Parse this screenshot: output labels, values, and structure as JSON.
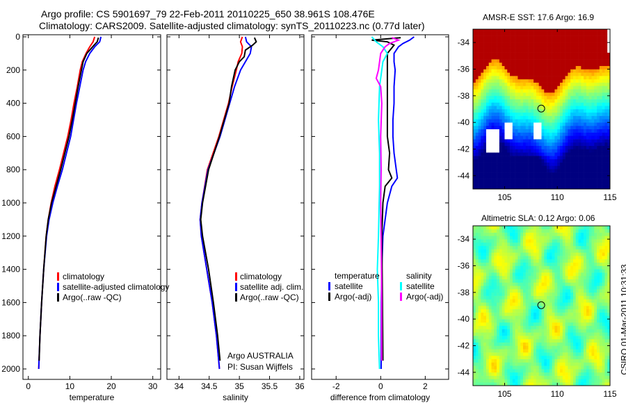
{
  "title": {
    "line1": "Argo profile: CS 5901697_79 22-Feb-2011 20110225_650 38.961S 108.476E",
    "line2": "Climatology: CARS2009. Satellite-adjusted climatology: synTS_20110223.nc (0.77d later)"
  },
  "credit": {
    "float_line1": "Argo AUSTRALIA",
    "float_line2": "PI: Susan Wijffels"
  },
  "timestamp": "CSIRO 01-Mar-2011 10:31:33",
  "colors": {
    "red": "#ff0000",
    "blue": "#0000ff",
    "black": "#000000",
    "cyan": "#00ffff",
    "magenta": "#ff00ff"
  },
  "chart_data": [
    {
      "type": "line",
      "xlabel": "temperature",
      "xlim": [
        -1.3,
        31.9
      ],
      "ylim": [
        2000,
        0
      ],
      "xticks": [
        0,
        10,
        20,
        30
      ],
      "xtick_labels": [
        "0",
        "10",
        "20",
        "30"
      ],
      "yticks": [
        0,
        200,
        400,
        600,
        800,
        1000,
        1200,
        1400,
        1600,
        1800,
        2000
      ],
      "ytick_labels": [
        "0",
        "200",
        "400",
        "600",
        "800",
        "1000",
        "1200",
        "1400",
        "1600",
        "1800",
        "2000"
      ],
      "legend": [
        "climatology",
        "satellite-adjusted climatology",
        "Argo(..raw -QC)"
      ],
      "series": [
        {
          "name": "climatology",
          "color": "#ff0000",
          "points": [
            [
              0,
              16.0
            ],
            [
              30,
              15.6
            ],
            [
              60,
              14.8
            ],
            [
              100,
              13.9
            ],
            [
              150,
              13.0
            ],
            [
              200,
              12.5
            ],
            [
              300,
              11.8
            ],
            [
              400,
              11.0
            ],
            [
              500,
              10.3
            ],
            [
              600,
              9.5
            ],
            [
              700,
              8.5
            ],
            [
              800,
              7.5
            ],
            [
              900,
              6.4
            ],
            [
              1000,
              5.5
            ],
            [
              1100,
              4.8
            ],
            [
              1200,
              4.3
            ],
            [
              1400,
              3.7
            ],
            [
              1600,
              3.2
            ],
            [
              1800,
              2.8
            ],
            [
              2000,
              2.5
            ]
          ]
        },
        {
          "name": "satellite-adjusted climatology",
          "color": "#0000ff",
          "points": [
            [
              0,
              17.5
            ],
            [
              30,
              17.2
            ],
            [
              60,
              16.0
            ],
            [
              100,
              14.8
            ],
            [
              150,
              13.8
            ],
            [
              200,
              13.2
            ],
            [
              300,
              12.4
            ],
            [
              400,
              11.6
            ],
            [
              500,
              10.9
            ],
            [
              600,
              10.2
            ],
            [
              700,
              9.2
            ],
            [
              800,
              8.2
            ],
            [
              900,
              7.0
            ],
            [
              1000,
              5.9
            ],
            [
              1100,
              5.0
            ],
            [
              1200,
              4.4
            ],
            [
              1400,
              3.7
            ],
            [
              1600,
              3.2
            ],
            [
              1800,
              2.8
            ],
            [
              2000,
              2.5
            ]
          ]
        },
        {
          "name": "Argo(..raw -QC)",
          "color": "#000000",
          "points": [
            [
              5,
              16.9
            ],
            [
              30,
              16.6
            ],
            [
              60,
              15.5
            ],
            [
              100,
              14.1
            ],
            [
              150,
              13.2
            ],
            [
              200,
              12.8
            ],
            [
              300,
              12.0
            ],
            [
              400,
              11.3
            ],
            [
              500,
              10.6
            ],
            [
              600,
              9.8
            ],
            [
              700,
              8.8
            ],
            [
              800,
              7.8
            ],
            [
              900,
              6.7
            ],
            [
              1000,
              5.6
            ],
            [
              1100,
              4.8
            ],
            [
              1200,
              4.3
            ],
            [
              1400,
              3.7
            ],
            [
              1600,
              3.2
            ],
            [
              1800,
              2.8
            ],
            [
              1950,
              2.6
            ]
          ]
        }
      ]
    },
    {
      "type": "line",
      "xlabel": "salinity",
      "xlim": [
        33.8,
        36.07
      ],
      "ylim": [
        2000,
        0
      ],
      "xticks": [
        34,
        34.5,
        35,
        35.5,
        36
      ],
      "xtick_labels": [
        "34",
        "34.5",
        "35",
        "35.5",
        "36"
      ],
      "yticks": [
        0,
        200,
        400,
        600,
        800,
        1000,
        1200,
        1400,
        1600,
        1800,
        2000
      ],
      "legend": [
        "climatology",
        "satellite adj. clim.",
        "Argo(..raw -QC)"
      ],
      "series": [
        {
          "name": "climatology",
          "color": "#ff0000",
          "points": [
            [
              0,
              35.05
            ],
            [
              30,
              35.02
            ],
            [
              60,
              35.05
            ],
            [
              100,
              35.04
            ],
            [
              150,
              34.98
            ],
            [
              200,
              34.95
            ],
            [
              300,
              34.88
            ],
            [
              400,
              34.82
            ],
            [
              600,
              34.66
            ],
            [
              800,
              34.47
            ],
            [
              1000,
              34.38
            ],
            [
              1100,
              34.35
            ],
            [
              1200,
              34.37
            ],
            [
              1400,
              34.46
            ],
            [
              1600,
              34.55
            ],
            [
              1800,
              34.62
            ],
            [
              2000,
              34.67
            ]
          ]
        },
        {
          "name": "satellite adj. clim.",
          "color": "#0000ff",
          "points": [
            [
              0,
              35.1
            ],
            [
              30,
              35.12
            ],
            [
              60,
              35.2
            ],
            [
              100,
              35.18
            ],
            [
              150,
              35.1
            ],
            [
              200,
              35.02
            ],
            [
              300,
              34.92
            ],
            [
              400,
              34.84
            ],
            [
              600,
              34.68
            ],
            [
              800,
              34.48
            ],
            [
              1000,
              34.38
            ],
            [
              1100,
              34.35
            ],
            [
              1200,
              34.37
            ],
            [
              1400,
              34.46
            ],
            [
              1600,
              34.55
            ],
            [
              1800,
              34.62
            ],
            [
              2000,
              34.67
            ]
          ]
        },
        {
          "name": "Argo(..raw -QC)",
          "color": "#000000",
          "points": [
            [
              5,
              35.25
            ],
            [
              30,
              35.28
            ],
            [
              50,
              35.22
            ],
            [
              80,
              35.1
            ],
            [
              120,
              35.08
            ],
            [
              150,
              35.0
            ],
            [
              200,
              34.93
            ],
            [
              300,
              34.87
            ],
            [
              400,
              34.83
            ],
            [
              600,
              34.67
            ],
            [
              800,
              34.49
            ],
            [
              1000,
              34.39
            ],
            [
              1100,
              34.36
            ],
            [
              1200,
              34.39
            ],
            [
              1400,
              34.49
            ],
            [
              1600,
              34.57
            ],
            [
              1800,
              34.64
            ],
            [
              1950,
              34.68
            ]
          ]
        }
      ]
    },
    {
      "type": "line",
      "xlabel": "difference from climatology",
      "xlim": [
        -3.1,
        3.05
      ],
      "ylim": [
        2000,
        0
      ],
      "xticks": [
        -2,
        0,
        2
      ],
      "xtick_labels": [
        "-2",
        "0",
        "2"
      ],
      "yticks": [
        0,
        200,
        400,
        600,
        800,
        1000,
        1200,
        1400,
        1600,
        1800,
        2000
      ],
      "legend_groups": [
        {
          "title": "temperature",
          "items": [
            "satellite",
            "Argo(-adj)"
          ]
        },
        {
          "title": "salinity",
          "items": [
            "satellite",
            "Argo(-adj)"
          ]
        }
      ],
      "series": [
        {
          "name": "temperature satellite",
          "color": "#0000ff",
          "points": [
            [
              0,
              1.5
            ],
            [
              20,
              1.3
            ],
            [
              40,
              1.0
            ],
            [
              60,
              0.8
            ],
            [
              100,
              0.6
            ],
            [
              150,
              0.6
            ],
            [
              200,
              0.65
            ],
            [
              300,
              0.6
            ],
            [
              400,
              0.6
            ],
            [
              500,
              0.55
            ],
            [
              600,
              0.55
            ],
            [
              700,
              0.6
            ],
            [
              800,
              0.7
            ],
            [
              850,
              0.75
            ],
            [
              900,
              0.5
            ],
            [
              1000,
              0.3
            ],
            [
              1200,
              0.1
            ],
            [
              1400,
              0.05
            ],
            [
              1600,
              0.03
            ],
            [
              2000,
              0.02
            ]
          ]
        },
        {
          "name": "temperature Argo(-adj)",
          "color": "#000000",
          "points": [
            [
              5,
              0.9
            ],
            [
              20,
              -0.4
            ],
            [
              30,
              0.3
            ],
            [
              50,
              0.6
            ],
            [
              100,
              0.3
            ],
            [
              150,
              0.3
            ],
            [
              200,
              0.3
            ],
            [
              400,
              0.3
            ],
            [
              600,
              0.3
            ],
            [
              700,
              0.4
            ],
            [
              800,
              0.35
            ],
            [
              850,
              0.5
            ],
            [
              900,
              0.2
            ],
            [
              1000,
              0.1
            ],
            [
              1200,
              0.05
            ],
            [
              1600,
              0.08
            ],
            [
              1950,
              0.1
            ]
          ]
        },
        {
          "name": "salinity satellite",
          "color": "#00ffff",
          "points": [
            [
              0,
              -0.4
            ],
            [
              30,
              -0.2
            ],
            [
              60,
              0.1
            ],
            [
              100,
              0.3
            ],
            [
              150,
              0.1
            ],
            [
              200,
              0.05
            ],
            [
              300,
              -0.05
            ],
            [
              500,
              -0.1
            ],
            [
              700,
              -0.05
            ],
            [
              900,
              -0.05
            ],
            [
              1200,
              -0.1
            ],
            [
              1400,
              -0.15
            ],
            [
              1600,
              -0.1
            ],
            [
              1800,
              -0.1
            ],
            [
              2000,
              -0.05
            ]
          ]
        },
        {
          "name": "salinity Argo(-adj)",
          "color": "#ff00ff",
          "points": [
            [
              5,
              0.5
            ],
            [
              20,
              0.8
            ],
            [
              40,
              0.4
            ],
            [
              60,
              0.2
            ],
            [
              100,
              0.0
            ],
            [
              200,
              -0.1
            ],
            [
              250,
              -0.2
            ],
            [
              300,
              0.0
            ],
            [
              400,
              0.05
            ],
            [
              600,
              0.0
            ],
            [
              800,
              0.02
            ],
            [
              1000,
              0.0
            ],
            [
              1200,
              0.02
            ],
            [
              1600,
              0.05
            ],
            [
              1950,
              0.05
            ]
          ]
        }
      ]
    },
    {
      "type": "heatmap",
      "title": "AMSR-E SST: 17.6 Argo: 16.9",
      "xlim": [
        102,
        115
      ],
      "ylim": [
        -45,
        -33
      ],
      "xticks": [
        105,
        110,
        115
      ],
      "xtick_labels": [
        "105",
        "110",
        "115"
      ],
      "yticks": [
        -34,
        -36,
        -38,
        -40,
        -42,
        -44
      ],
      "ytick_labels": [
        "-34",
        "-36",
        "-38",
        "-40",
        "-42",
        "-44"
      ],
      "marker": {
        "lon": 108.476,
        "lat": -38.961
      }
    },
    {
      "type": "heatmap",
      "title": "Altimetric SLA: 0.12 Argo: 0.06",
      "xlim": [
        102,
        115
      ],
      "ylim": [
        -45,
        -33
      ],
      "xticks": [
        105,
        110,
        115
      ],
      "xtick_labels": [
        "105",
        "110",
        "115"
      ],
      "yticks": [
        -34,
        -36,
        -38,
        -40,
        -42,
        -44
      ],
      "ytick_labels": [
        "-34",
        "-36",
        "-38",
        "-40",
        "-42",
        "-44"
      ],
      "marker": {
        "lon": 108.476,
        "lat": -38.961
      }
    }
  ]
}
